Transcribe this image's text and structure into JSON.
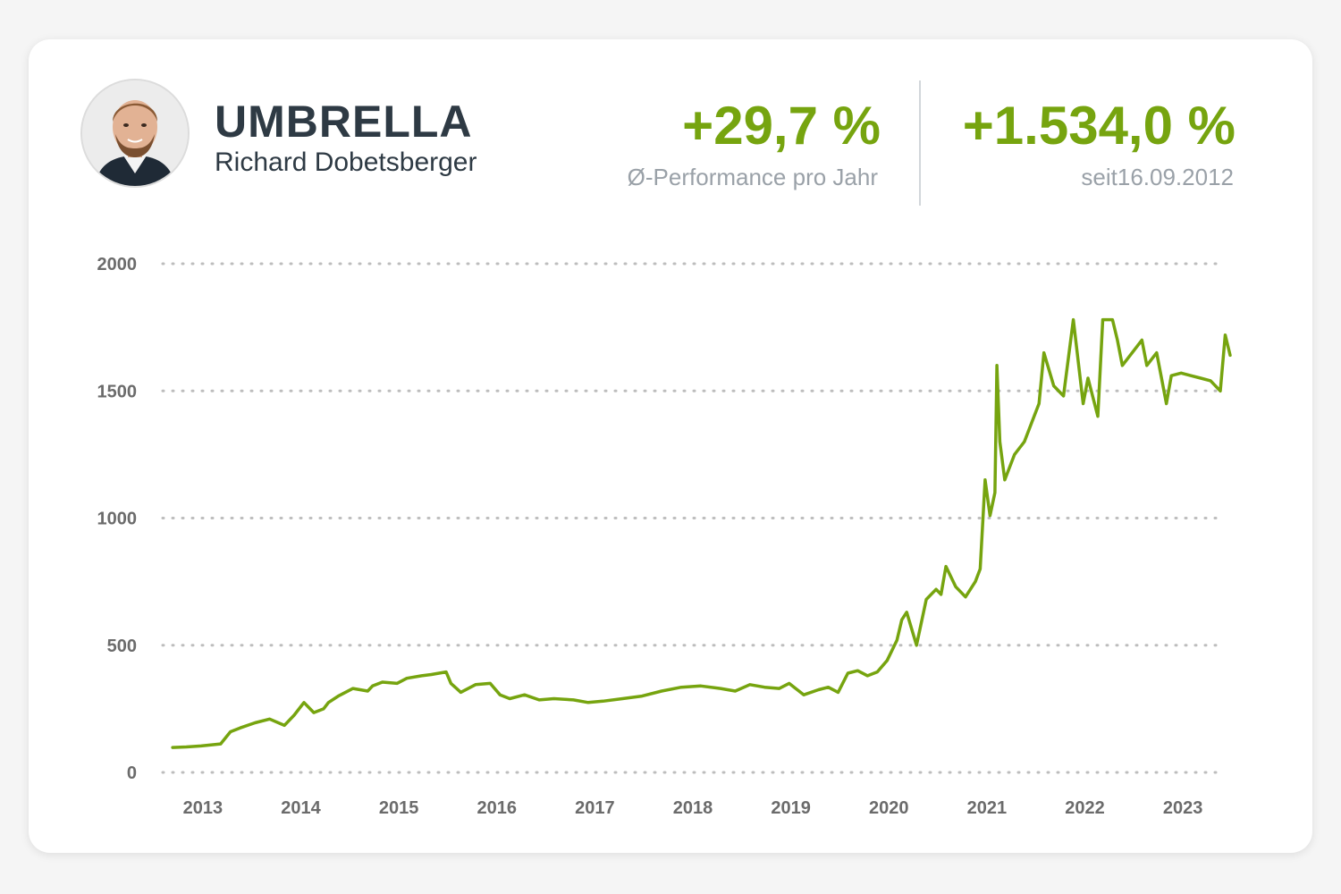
{
  "header": {
    "title": "UMBRELLA",
    "subtitle": "Richard Dobetsberger",
    "avatar_icon": "person-portrait"
  },
  "stats": [
    {
      "value": "+29,7 %",
      "label": "Ø-Performance pro Jahr"
    },
    {
      "value": "+1.534,0 %",
      "label": "seit16.09.2012"
    }
  ],
  "colors": {
    "accent": "#76a40f",
    "text": "#2e3a44",
    "muted": "#9aa1a8",
    "grid": "#bdbdbd"
  },
  "chart_data": {
    "type": "line",
    "title": "",
    "xlabel": "",
    "ylabel": "",
    "ylim": [
      0,
      2000
    ],
    "xlim": [
      2012.7,
      2023.5
    ],
    "yticks": [
      "0",
      "500",
      "1000",
      "1500",
      "2000"
    ],
    "xticks": [
      "2013",
      "2014",
      "2015",
      "2016",
      "2017",
      "2018",
      "2019",
      "2020",
      "2021",
      "2022",
      "2023"
    ],
    "grid": true,
    "series": [
      {
        "name": "",
        "color": "#76a40f",
        "x": [
          2012.71,
          2012.85,
          2013.0,
          2013.1,
          2013.2,
          2013.3,
          2013.4,
          2013.55,
          2013.7,
          2013.85,
          2013.95,
          2014.05,
          2014.15,
          2014.25,
          2014.3,
          2014.4,
          2014.55,
          2014.7,
          2014.75,
          2014.85,
          2015.0,
          2015.1,
          2015.25,
          2015.35,
          2015.5,
          2015.55,
          2015.65,
          2015.8,
          2015.95,
          2016.05,
          2016.15,
          2016.3,
          2016.45,
          2016.6,
          2016.8,
          2016.95,
          2017.1,
          2017.3,
          2017.5,
          2017.7,
          2017.9,
          2018.1,
          2018.3,
          2018.45,
          2018.6,
          2018.75,
          2018.9,
          2019.0,
          2019.15,
          2019.3,
          2019.4,
          2019.5,
          2019.6,
          2019.7,
          2019.8,
          2019.9,
          2020.0,
          2020.1,
          2020.15,
          2020.2,
          2020.3,
          2020.4,
          2020.5,
          2020.55,
          2020.6,
          2020.7,
          2020.8,
          2020.9,
          2020.95,
          2021.0,
          2021.05,
          2021.1,
          2021.12,
          2021.15,
          2021.2,
          2021.3,
          2021.4,
          2021.5,
          2021.55,
          2021.6,
          2021.7,
          2021.8,
          2021.9,
          2022.0,
          2022.05,
          2022.15,
          2022.2,
          2022.3,
          2022.35,
          2022.4,
          2022.5,
          2022.6,
          2022.65,
          2022.75,
          2022.85,
          2022.9,
          2023.0,
          2023.1,
          2023.2,
          2023.3,
          2023.4,
          2023.45,
          2023.5
        ],
        "values": [
          98,
          100,
          104,
          108,
          112,
          160,
          175,
          195,
          210,
          185,
          225,
          275,
          235,
          250,
          275,
          300,
          330,
          320,
          340,
          355,
          350,
          370,
          380,
          385,
          395,
          350,
          315,
          345,
          350,
          305,
          290,
          305,
          285,
          290,
          285,
          275,
          280,
          290,
          300,
          320,
          335,
          340,
          330,
          320,
          345,
          335,
          330,
          350,
          305,
          325,
          335,
          315,
          390,
          400,
          380,
          395,
          440,
          520,
          600,
          630,
          500,
          680,
          720,
          700,
          810,
          730,
          690,
          750,
          800,
          1150,
          1010,
          1100,
          1600,
          1300,
          1150,
          1250,
          1300,
          1400,
          1450,
          1650,
          1520,
          1480,
          1780,
          1450,
          1550,
          1400,
          1780,
          1780,
          1700,
          1600,
          1650,
          1700,
          1600,
          1650,
          1450,
          1560,
          1570,
          1560,
          1550,
          1540,
          1500,
          1720,
          1640
        ]
      }
    ]
  }
}
